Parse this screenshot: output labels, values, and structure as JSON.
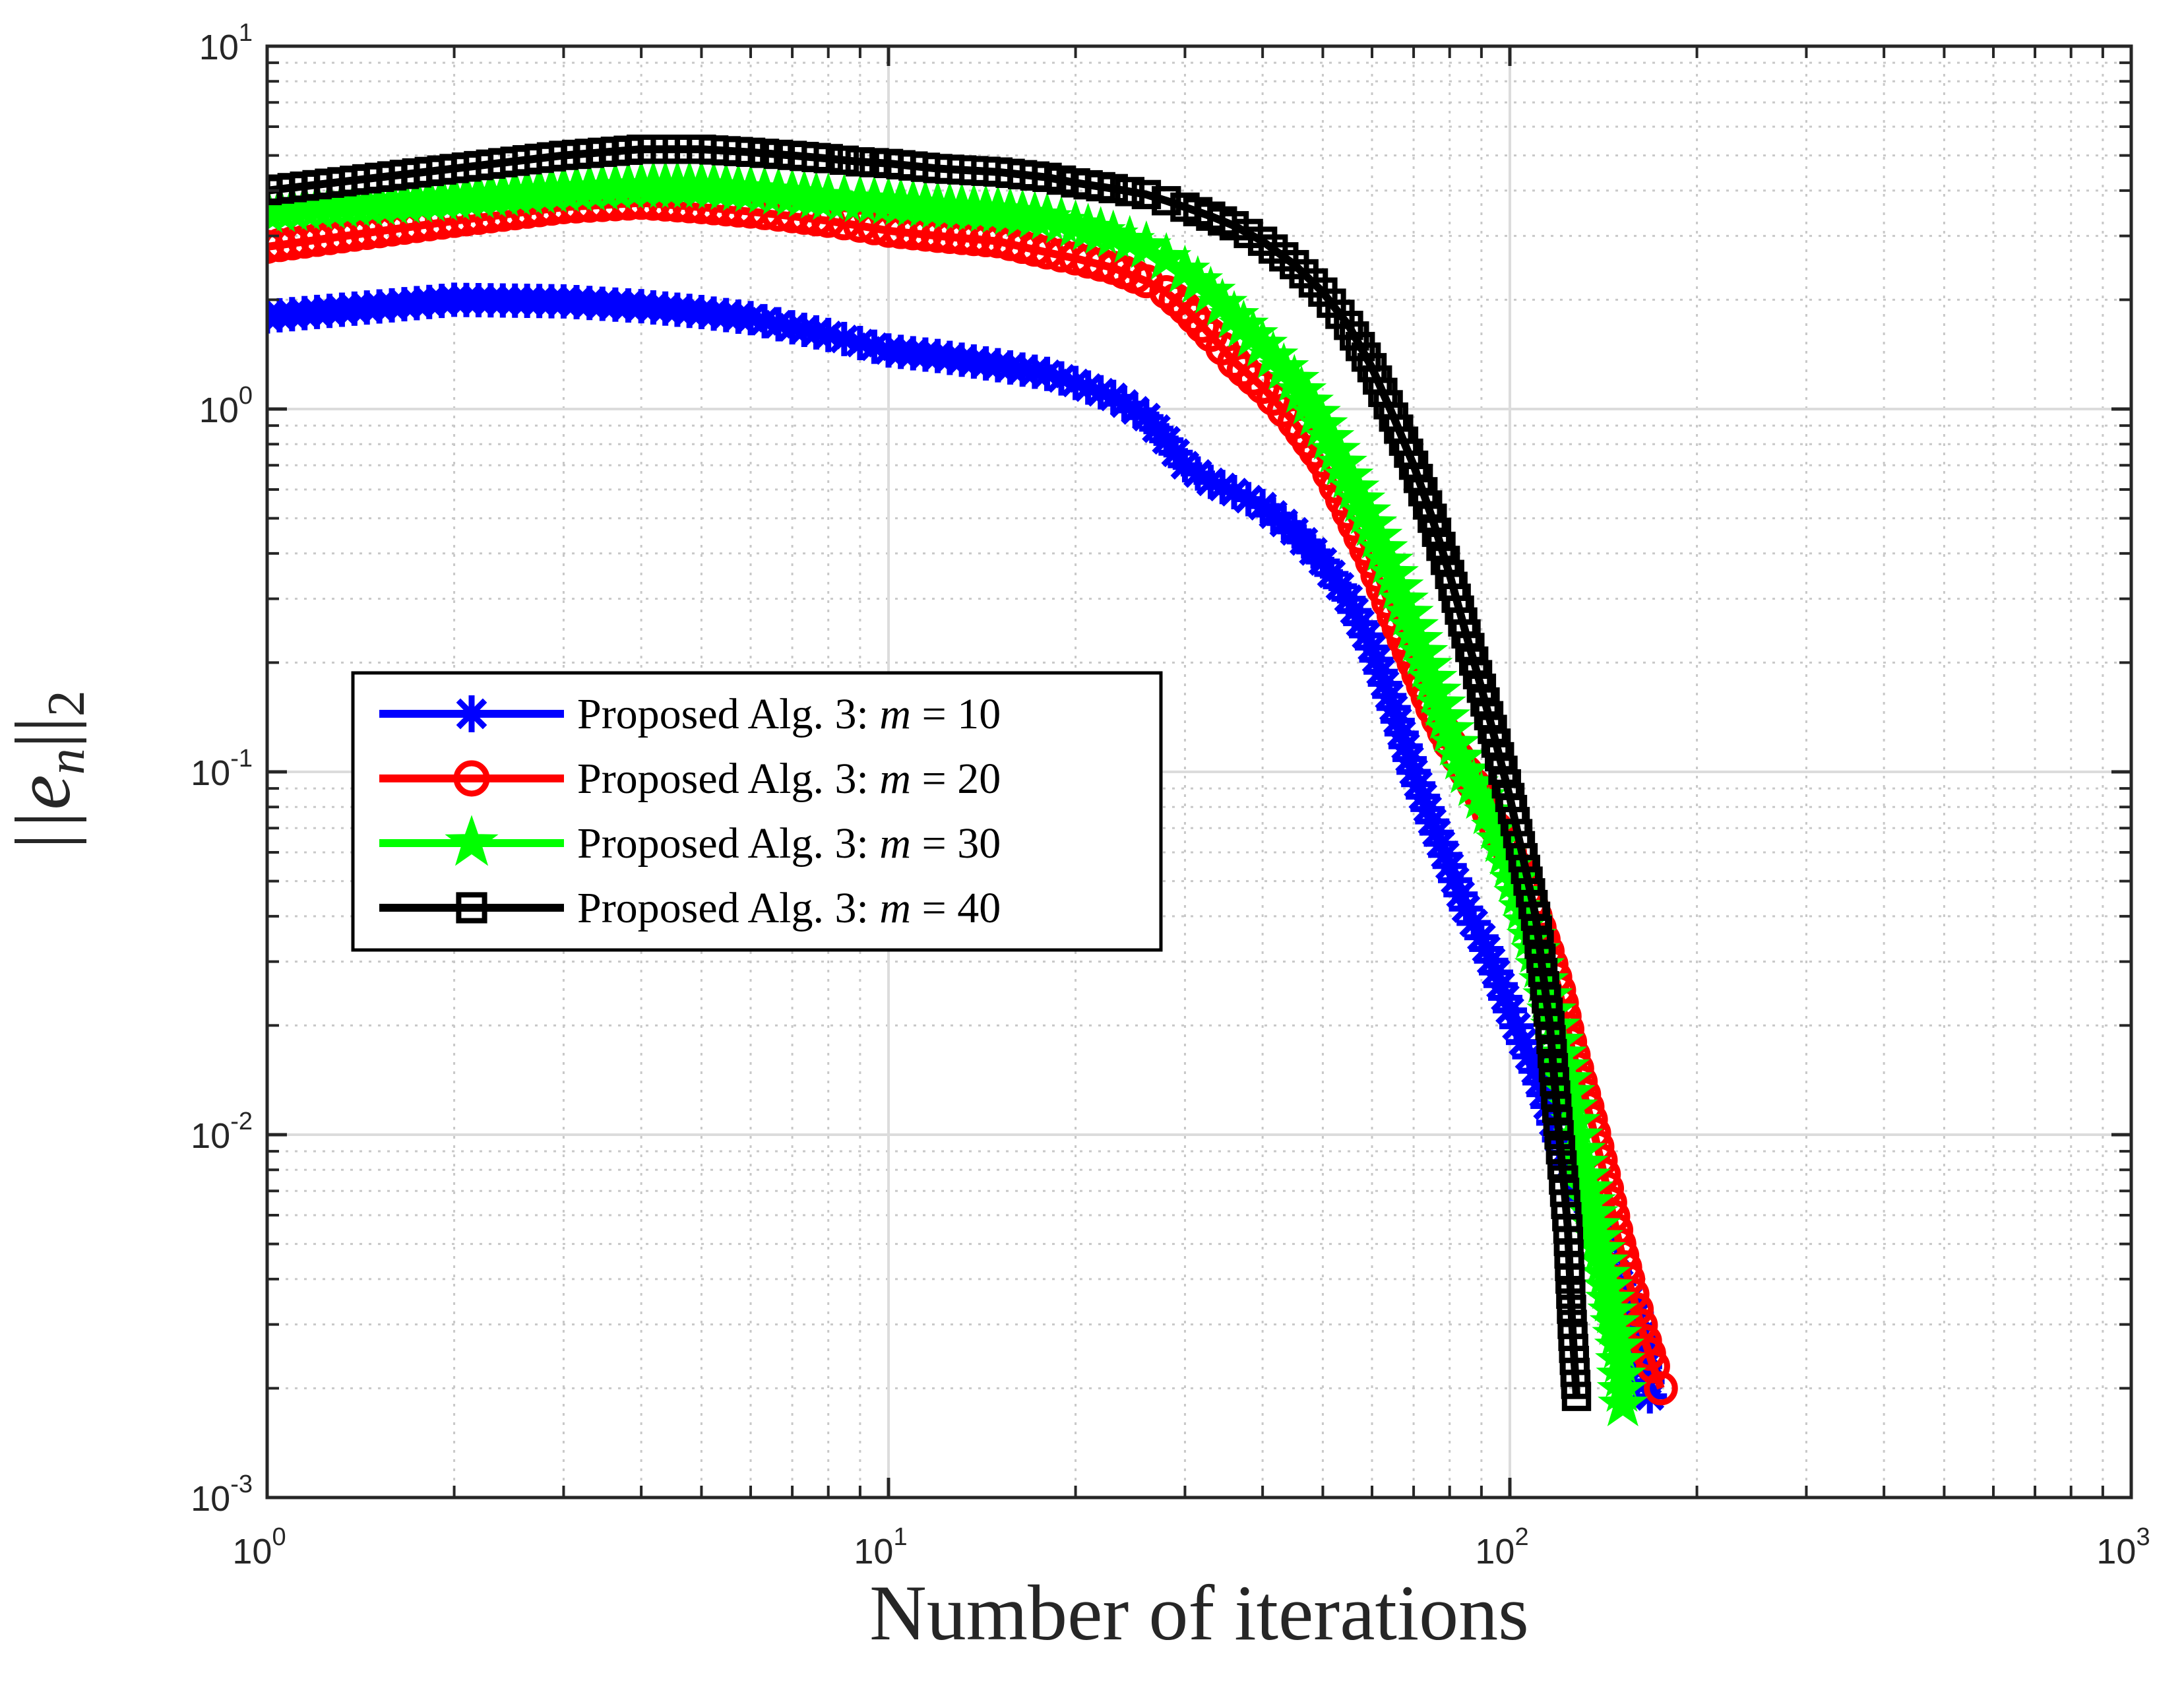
{
  "chart_data": {
    "type": "line",
    "title": "",
    "xlabel": "Number of iterations",
    "ylabel": "||e_n||_2",
    "ylabel_display": {
      "base": "||e",
      "sub": "n",
      "tail": "||",
      "tail_sub": "2"
    },
    "xscale": "log",
    "yscale": "log",
    "xlim": [
      1,
      1000
    ],
    "ylim": [
      0.001,
      10
    ],
    "grid": true,
    "minor_grid": true,
    "legend_location": "center-left",
    "x_ticks": [
      {
        "value": 1,
        "base": "10",
        "exp": "0"
      },
      {
        "value": 10,
        "base": "10",
        "exp": "1"
      },
      {
        "value": 100,
        "base": "10",
        "exp": "2"
      },
      {
        "value": 1000,
        "base": "10",
        "exp": "3"
      }
    ],
    "y_ticks": [
      {
        "value": 0.001,
        "base": "10",
        "exp": "-3"
      },
      {
        "value": 0.01,
        "base": "10",
        "exp": "-2"
      },
      {
        "value": 0.1,
        "base": "10",
        "exp": "-1"
      },
      {
        "value": 1,
        "base": "10",
        "exp": "0"
      },
      {
        "value": 10,
        "base": "10",
        "exp": "1"
      }
    ],
    "series": [
      {
        "name": "Proposed Alg. 3: m = 10",
        "legend_prefix": "Proposed Alg. 3: ",
        "legend_var": "m",
        "legend_suffix": " = 10",
        "color": "#0000ff",
        "marker": "asterisk",
        "x": [
          1,
          2,
          3,
          4,
          5,
          6,
          7,
          8,
          9,
          10,
          12,
          15,
          18,
          20,
          23,
          26,
          28,
          30,
          33,
          36,
          40,
          45,
          50,
          55,
          60,
          65,
          70,
          75,
          80,
          85,
          90,
          95,
          100,
          105,
          110,
          115,
          120,
          125,
          130,
          135,
          140,
          145,
          150,
          155,
          160,
          163,
          165,
          168
        ],
        "y": [
          1.8,
          2.0,
          1.98,
          1.92,
          1.85,
          1.78,
          1.68,
          1.6,
          1.52,
          1.45,
          1.4,
          1.32,
          1.25,
          1.18,
          1.08,
          0.95,
          0.82,
          0.7,
          0.63,
          0.59,
          0.54,
          0.46,
          0.38,
          0.3,
          0.22,
          0.15,
          0.1,
          0.073,
          0.055,
          0.042,
          0.035,
          0.028,
          0.022,
          0.018,
          0.015,
          0.012,
          0.0097,
          0.0082,
          0.0072,
          0.0062,
          0.0052,
          0.0045,
          0.0039,
          0.0035,
          0.0032,
          0.0028,
          0.0023,
          0.0019
        ]
      },
      {
        "name": "Proposed Alg. 3: m = 20",
        "legend_prefix": "Proposed Alg. 3: ",
        "legend_var": "m",
        "legend_suffix": " = 20",
        "color": "#ff0000",
        "marker": "circle",
        "x": [
          1,
          2,
          3,
          4,
          5,
          6,
          7,
          8,
          9,
          10,
          12,
          15,
          18,
          20,
          23,
          26,
          28,
          30,
          33,
          36,
          40,
          45,
          50,
          55,
          60,
          65,
          70,
          75,
          80,
          85,
          90,
          95,
          100,
          105,
          110,
          115,
          120,
          125,
          130,
          135,
          140,
          145,
          150,
          155,
          160,
          165,
          170,
          175
        ],
        "y": [
          2.8,
          3.3,
          3.6,
          3.7,
          3.6,
          3.5,
          3.4,
          3.3,
          3.2,
          3.1,
          3.0,
          2.9,
          2.7,
          2.6,
          2.45,
          2.25,
          2.1,
          1.9,
          1.6,
          1.35,
          1.15,
          0.92,
          0.72,
          0.52,
          0.38,
          0.27,
          0.2,
          0.15,
          0.12,
          0.1,
          0.085,
          0.07,
          0.06,
          0.05,
          0.04,
          0.032,
          0.025,
          0.018,
          0.014,
          0.011,
          0.0085,
          0.0065,
          0.005,
          0.004,
          0.0033,
          0.0027,
          0.0023,
          0.002
        ]
      },
      {
        "name": "Proposed Alg. 3: m = 30",
        "legend_prefix": "Proposed Alg. 3: ",
        "legend_var": "m",
        "legend_suffix": " = 30",
        "color": "#00ff00",
        "marker": "pentagram",
        "x": [
          1,
          2,
          3,
          4,
          5,
          6,
          7,
          8,
          9,
          10,
          12,
          15,
          18,
          20,
          23,
          26,
          28,
          30,
          33,
          36,
          40,
          45,
          50,
          55,
          60,
          65,
          70,
          75,
          80,
          85,
          90,
          95,
          100,
          105,
          110,
          115,
          120,
          125,
          130,
          135,
          140,
          145,
          150,
          152
        ],
        "y": [
          3.5,
          3.8,
          4.0,
          4.1,
          4.1,
          4.0,
          3.9,
          3.8,
          3.75,
          3.7,
          3.6,
          3.5,
          3.35,
          3.2,
          3.0,
          2.8,
          2.6,
          2.4,
          2.1,
          1.8,
          1.5,
          1.2,
          0.9,
          0.65,
          0.48,
          0.35,
          0.25,
          0.18,
          0.13,
          0.1,
          0.085,
          0.07,
          0.055,
          0.042,
          0.032,
          0.024,
          0.018,
          0.013,
          0.009,
          0.0065,
          0.0048,
          0.0035,
          0.0026,
          0.0018
        ]
      },
      {
        "name": "Proposed Alg. 3: m = 40",
        "legend_prefix": "Proposed Alg. 3: ",
        "legend_var": "m",
        "legend_suffix": " = 40",
        "color": "#000000",
        "marker": "square",
        "x": [
          1,
          2,
          3,
          4,
          5,
          6,
          7,
          8,
          9,
          10,
          12,
          15,
          18,
          20,
          23,
          26,
          28,
          30,
          33,
          36,
          40,
          45,
          50,
          55,
          60,
          65,
          70,
          75,
          80,
          85,
          90,
          95,
          100,
          105,
          110,
          113,
          116,
          118,
          120,
          122,
          124,
          125,
          126,
          128
        ],
        "y": [
          4.0,
          4.6,
          5.0,
          5.2,
          5.2,
          5.1,
          5.0,
          4.9,
          4.8,
          4.75,
          4.6,
          4.5,
          4.35,
          4.2,
          4.05,
          3.9,
          3.75,
          3.6,
          3.4,
          3.2,
          2.9,
          2.5,
          2.1,
          1.7,
          1.3,
          0.95,
          0.7,
          0.5,
          0.35,
          0.24,
          0.17,
          0.12,
          0.085,
          0.058,
          0.04,
          0.028,
          0.02,
          0.014,
          0.01,
          0.0075,
          0.0055,
          0.004,
          0.003,
          0.0019
        ]
      }
    ]
  }
}
